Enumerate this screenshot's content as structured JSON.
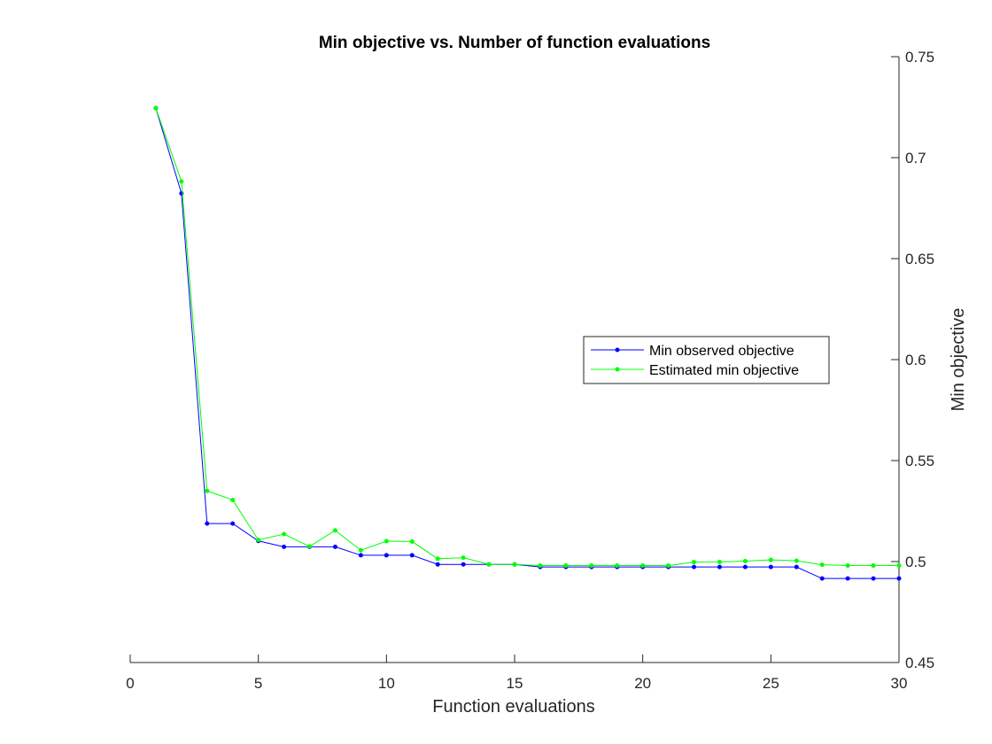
{
  "chart_data": {
    "type": "line",
    "title": "Min objective vs. Number of function evaluations",
    "xlabel": "Function evaluations",
    "ylabel": "Min objective",
    "xlim": [
      0,
      30
    ],
    "ylim": [
      0.45,
      0.75
    ],
    "xticks": [
      "0",
      "5",
      "10",
      "15",
      "20",
      "25",
      "30"
    ],
    "yticks": [
      "0.45",
      "0.5",
      "0.55",
      "0.6",
      "0.65",
      "0.7",
      "0.75"
    ],
    "y_axis_location": "right",
    "grid": false,
    "legend_position": "center-right",
    "x": [
      1,
      2,
      3,
      4,
      5,
      6,
      7,
      8,
      9,
      10,
      11,
      12,
      13,
      14,
      15,
      16,
      17,
      18,
      19,
      20,
      21,
      22,
      23,
      24,
      25,
      26,
      27,
      28,
      29,
      30
    ],
    "series": [
      {
        "name": "Min observed objective",
        "color": "#0000ff",
        "values": [
          0.7245,
          0.6823,
          0.5188,
          0.5188,
          0.5102,
          0.5073,
          0.5073,
          0.5073,
          0.5031,
          0.5031,
          0.5031,
          0.4986,
          0.4986,
          0.4986,
          0.4986,
          0.4973,
          0.4973,
          0.4973,
          0.4973,
          0.4973,
          0.4973,
          0.4973,
          0.4973,
          0.4973,
          0.4973,
          0.4973,
          0.4916,
          0.4916,
          0.4916,
          0.4916
        ]
      },
      {
        "name": "Estimated min objective",
        "color": "#00ff00",
        "values": [
          0.7245,
          0.6882,
          0.535,
          0.5305,
          0.5107,
          0.5136,
          0.5075,
          0.5154,
          0.5056,
          0.5101,
          0.5099,
          0.5014,
          0.5019,
          0.4986,
          0.4986,
          0.498,
          0.498,
          0.498,
          0.498,
          0.498,
          0.498,
          0.4997,
          0.4998,
          0.5002,
          0.5008,
          0.5004,
          0.4984,
          0.498,
          0.498,
          0.498
        ]
      }
    ]
  }
}
